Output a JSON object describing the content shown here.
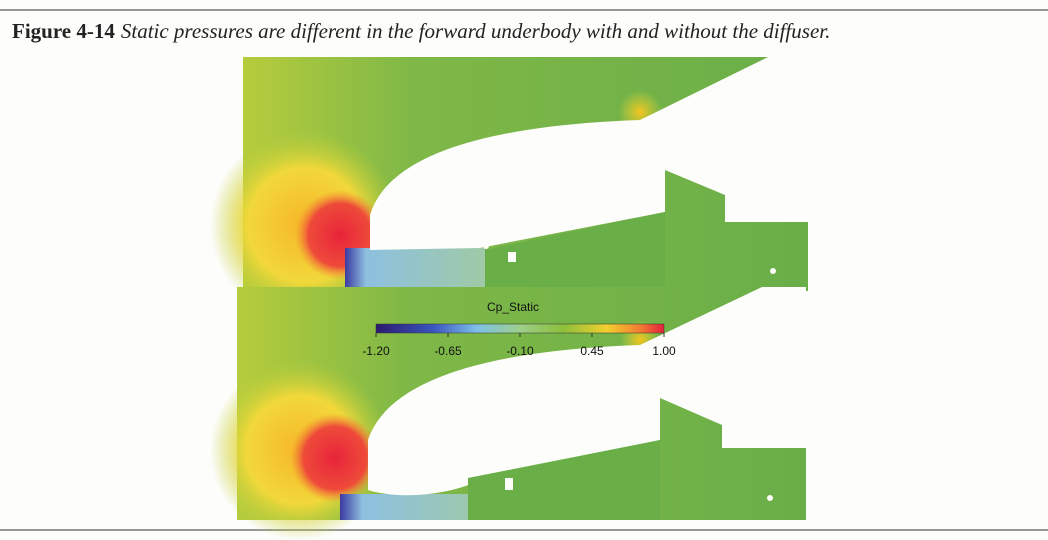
{
  "figure": {
    "label": "Figure 4-14",
    "caption": "Static pressures are different in the forward underbody with and without the diffuser."
  },
  "colorbar": {
    "title": "Cp_Static",
    "range": [
      -1.2,
      1.0
    ],
    "ticks": [
      {
        "value": -1.2,
        "label": "-1.20"
      },
      {
        "value": -0.65,
        "label": "-0.65"
      },
      {
        "value": -0.1,
        "label": "-0.10"
      },
      {
        "value": 0.45,
        "label": "0.45"
      },
      {
        "value": 1.0,
        "label": "1.00"
      }
    ]
  }
}
